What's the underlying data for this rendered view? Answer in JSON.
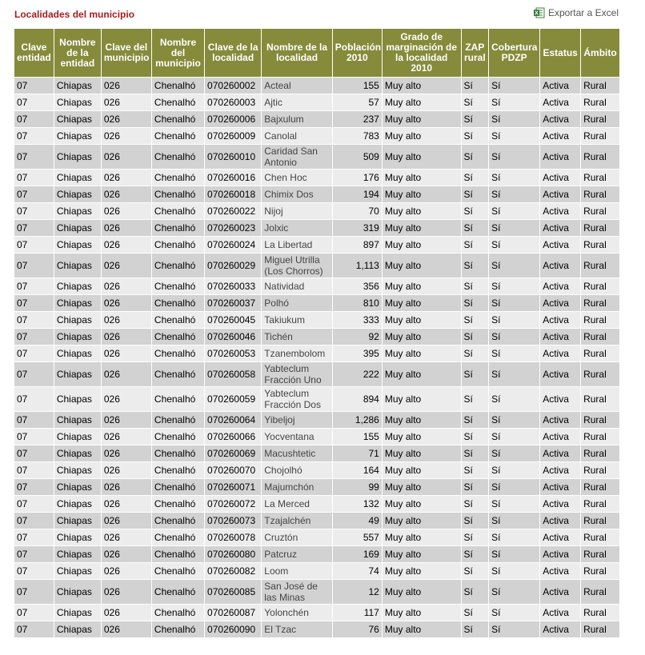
{
  "header": {
    "title": "Localidades del municipio",
    "export_label": "Exportar a Excel",
    "export_icon": "excel-icon"
  },
  "columns": [
    "Clave entidad",
    "Nombre de la entidad",
    "Clave del municipio",
    "Nombre del municipio",
    "Clave de la localidad",
    "Nombre de la localidad",
    "Población 2010",
    "Grado de marginación de la localidad 2010",
    "ZAP rural",
    "Cobertura PDZP",
    "Estatus",
    "Ámbito"
  ],
  "rows": [
    [
      "07",
      "Chiapas",
      "026",
      "Chenalhó",
      "070260002",
      "Acteal",
      "155",
      "Muy alto",
      "Sí",
      "Sí",
      "Activa",
      "Rural"
    ],
    [
      "07",
      "Chiapas",
      "026",
      "Chenalhó",
      "070260003",
      "Ajtic",
      "57",
      "Muy alto",
      "Sí",
      "Sí",
      "Activa",
      "Rural"
    ],
    [
      "07",
      "Chiapas",
      "026",
      "Chenalhó",
      "070260006",
      "Bajxulum",
      "237",
      "Muy alto",
      "Sí",
      "Sí",
      "Activa",
      "Rural"
    ],
    [
      "07",
      "Chiapas",
      "026",
      "Chenalhó",
      "070260009",
      "Canolal",
      "783",
      "Muy alto",
      "Sí",
      "Sí",
      "Activa",
      "Rural"
    ],
    [
      "07",
      "Chiapas",
      "026",
      "Chenalhó",
      "070260010",
      "Caridad San Antonio",
      "509",
      "Muy alto",
      "Sí",
      "Sí",
      "Activa",
      "Rural"
    ],
    [
      "07",
      "Chiapas",
      "026",
      "Chenalhó",
      "070260016",
      "Chen Hoc",
      "176",
      "Muy alto",
      "Sí",
      "Sí",
      "Activa",
      "Rural"
    ],
    [
      "07",
      "Chiapas",
      "026",
      "Chenalhó",
      "070260018",
      "Chimix Dos",
      "194",
      "Muy alto",
      "Sí",
      "Sí",
      "Activa",
      "Rural"
    ],
    [
      "07",
      "Chiapas",
      "026",
      "Chenalhó",
      "070260022",
      "Nijoj",
      "70",
      "Muy alto",
      "Sí",
      "Sí",
      "Activa",
      "Rural"
    ],
    [
      "07",
      "Chiapas",
      "026",
      "Chenalhó",
      "070260023",
      "Jolxic",
      "319",
      "Muy alto",
      "Sí",
      "Sí",
      "Activa",
      "Rural"
    ],
    [
      "07",
      "Chiapas",
      "026",
      "Chenalhó",
      "070260024",
      "La Libertad",
      "897",
      "Muy alto",
      "Sí",
      "Sí",
      "Activa",
      "Rural"
    ],
    [
      "07",
      "Chiapas",
      "026",
      "Chenalhó",
      "070260029",
      "Miguel Utrilla (Los Chorros)",
      "1,113",
      "Muy alto",
      "Sí",
      "Sí",
      "Activa",
      "Rural"
    ],
    [
      "07",
      "Chiapas",
      "026",
      "Chenalhó",
      "070260033",
      "Natividad",
      "356",
      "Muy alto",
      "Sí",
      "Sí",
      "Activa",
      "Rural"
    ],
    [
      "07",
      "Chiapas",
      "026",
      "Chenalhó",
      "070260037",
      "Polhó",
      "810",
      "Muy alto",
      "Sí",
      "Sí",
      "Activa",
      "Rural"
    ],
    [
      "07",
      "Chiapas",
      "026",
      "Chenalhó",
      "070260045",
      "Takiukum",
      "333",
      "Muy alto",
      "Sí",
      "Sí",
      "Activa",
      "Rural"
    ],
    [
      "07",
      "Chiapas",
      "026",
      "Chenalhó",
      "070260046",
      "Tichén",
      "92",
      "Muy alto",
      "Sí",
      "Sí",
      "Activa",
      "Rural"
    ],
    [
      "07",
      "Chiapas",
      "026",
      "Chenalhó",
      "070260053",
      "Tzanembolom",
      "395",
      "Muy alto",
      "Sí",
      "Sí",
      "Activa",
      "Rural"
    ],
    [
      "07",
      "Chiapas",
      "026",
      "Chenalhó",
      "070260058",
      "Yabteclum Fracción Uno",
      "222",
      "Muy alto",
      "Sí",
      "Sí",
      "Activa",
      "Rural"
    ],
    [
      "07",
      "Chiapas",
      "026",
      "Chenalhó",
      "070260059",
      "Yabteclum Fracción Dos",
      "894",
      "Muy alto",
      "Sí",
      "Sí",
      "Activa",
      "Rural"
    ],
    [
      "07",
      "Chiapas",
      "026",
      "Chenalhó",
      "070260064",
      "Yibeljoj",
      "1,286",
      "Muy alto",
      "Sí",
      "Sí",
      "Activa",
      "Rural"
    ],
    [
      "07",
      "Chiapas",
      "026",
      "Chenalhó",
      "070260066",
      "Yocventana",
      "155",
      "Muy alto",
      "Sí",
      "Sí",
      "Activa",
      "Rural"
    ],
    [
      "07",
      "Chiapas",
      "026",
      "Chenalhó",
      "070260069",
      "Macushtetic",
      "71",
      "Muy alto",
      "Sí",
      "Sí",
      "Activa",
      "Rural"
    ],
    [
      "07",
      "Chiapas",
      "026",
      "Chenalhó",
      "070260070",
      "Chojolhó",
      "164",
      "Muy alto",
      "Sí",
      "Sí",
      "Activa",
      "Rural"
    ],
    [
      "07",
      "Chiapas",
      "026",
      "Chenalhó",
      "070260071",
      "Majumchón",
      "99",
      "Muy alto",
      "Sí",
      "Sí",
      "Activa",
      "Rural"
    ],
    [
      "07",
      "Chiapas",
      "026",
      "Chenalhó",
      "070260072",
      "La Merced",
      "132",
      "Muy alto",
      "Sí",
      "Sí",
      "Activa",
      "Rural"
    ],
    [
      "07",
      "Chiapas",
      "026",
      "Chenalhó",
      "070260073",
      "Tzajalchén",
      "49",
      "Muy alto",
      "Sí",
      "Sí",
      "Activa",
      "Rural"
    ],
    [
      "07",
      "Chiapas",
      "026",
      "Chenalhó",
      "070260078",
      "Cruztón",
      "557",
      "Muy alto",
      "Sí",
      "Sí",
      "Activa",
      "Rural"
    ],
    [
      "07",
      "Chiapas",
      "026",
      "Chenalhó",
      "070260080",
      "Patcruz",
      "169",
      "Muy alto",
      "Sí",
      "Sí",
      "Activa",
      "Rural"
    ],
    [
      "07",
      "Chiapas",
      "026",
      "Chenalhó",
      "070260082",
      "Loom",
      "74",
      "Muy alto",
      "Sí",
      "Sí",
      "Activa",
      "Rural"
    ],
    [
      "07",
      "Chiapas",
      "026",
      "Chenalhó",
      "070260085",
      "San José de las Minas",
      "12",
      "Muy alto",
      "Sí",
      "Sí",
      "Activa",
      "Rural"
    ],
    [
      "07",
      "Chiapas",
      "026",
      "Chenalhó",
      "070260087",
      "Yolonchén",
      "117",
      "Muy alto",
      "Sí",
      "Sí",
      "Activa",
      "Rural"
    ],
    [
      "07",
      "Chiapas",
      "026",
      "Chenalhó",
      "070260090",
      "El Tzac",
      "76",
      "Muy alto",
      "Sí",
      "Sí",
      "Activa",
      "Rural"
    ]
  ]
}
